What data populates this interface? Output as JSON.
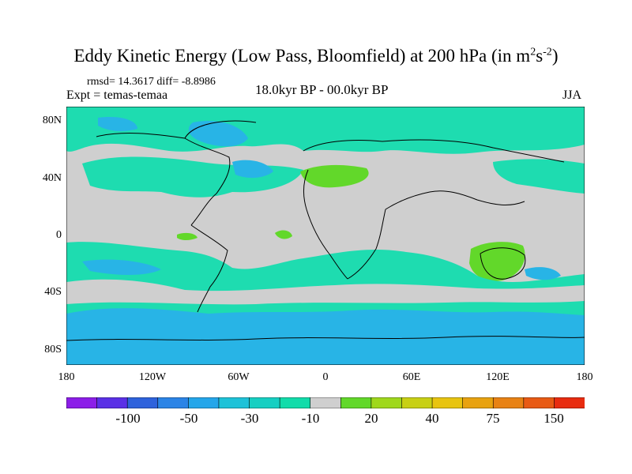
{
  "title": {
    "prefix": "Eddy Kinetic Energy (Low Pass, Bloomfield) at 200 hPa (in m",
    "sup1": "2",
    "mid": "s",
    "sup2": "-2",
    "suffix": ")"
  },
  "stats_text": "rmsd= 14.3617 diff= -8.8986",
  "expt_text": "Expt = temas-temaa",
  "period_text": "18.0kyr BP - 00.0kyr BP",
  "season_text": "JJA",
  "lat_labels": [
    "80N",
    "40N",
    "0",
    "40S",
    "80S"
  ],
  "lon_labels": [
    "180",
    "120W",
    "60W",
    "0",
    "60E",
    "120E",
    "180"
  ],
  "colorbar": {
    "colors": [
      "#8c1ee8",
      "#5a30e6",
      "#2e62dc",
      "#2b84e6",
      "#24a6ea",
      "#1ec2d8",
      "#16cfc2",
      "#12dcaa",
      "#cfcfcf",
      "#62d82a",
      "#9fd81c",
      "#c8d014",
      "#e8c410",
      "#e8a210",
      "#e88214",
      "#e85a14",
      "#e82c10"
    ],
    "labels": [
      "-100",
      "-50",
      "-30",
      "-10",
      "20",
      "40",
      "75",
      "150"
    ]
  },
  "legend_colors": {
    "ocean_low": "#1edcb0",
    "neutral": "#cfcfcf",
    "blue": "#28b4e6",
    "green": "#62d82a",
    "coast": "#000000"
  }
}
